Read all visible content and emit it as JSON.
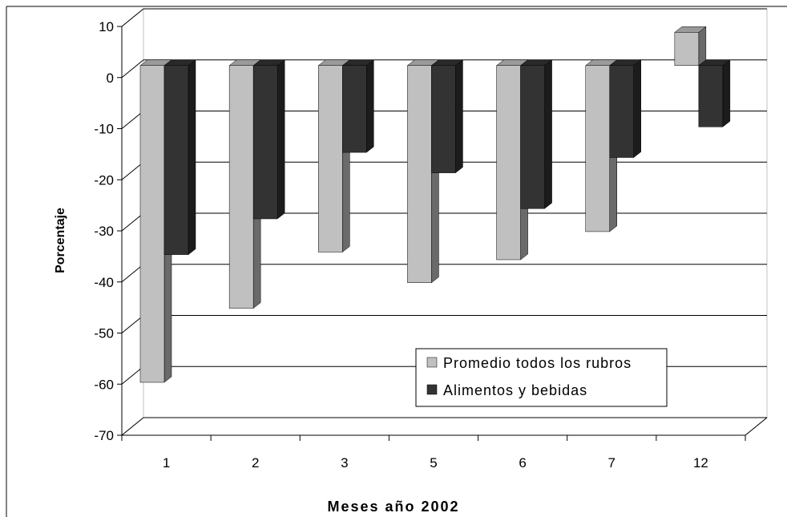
{
  "chart_data": {
    "type": "bar",
    "title": "",
    "xlabel": "Meses año 2002",
    "ylabel": "Porcentaje",
    "categories": [
      "1",
      "2",
      "3",
      "5",
      "6",
      "7",
      "12"
    ],
    "series": [
      {
        "name": "Promedio todos los rubros",
        "values": [
          -62,
          -47.5,
          -36.5,
          -42.5,
          -38,
          -32.5,
          6.5
        ],
        "color": "#c0c0c0"
      },
      {
        "name": "Alimentos y bebidas",
        "values": [
          -37,
          -30,
          -17,
          -21,
          -28,
          -18,
          -12
        ],
        "color": "#333333"
      }
    ],
    "ylim": [
      -70,
      10
    ],
    "yticks": [
      "10",
      "0",
      "-10",
      "-20",
      "-30",
      "-40",
      "-50",
      "-60",
      "-70"
    ],
    "grid": true,
    "legend_position": "bottom-right",
    "style": "3d-clustered-bar"
  }
}
